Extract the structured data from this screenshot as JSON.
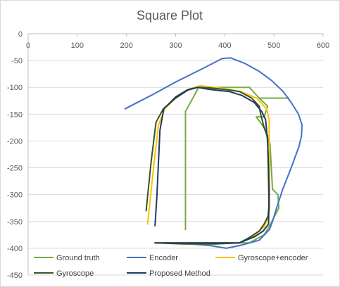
{
  "chart_data": {
    "type": "line",
    "title": "Square Plot",
    "xlabel": "",
    "ylabel": "",
    "xlim": [
      0,
      600
    ],
    "ylim": [
      -450,
      0
    ],
    "x_ticks": [
      0,
      100,
      200,
      300,
      400,
      500,
      600
    ],
    "y_ticks": [
      0,
      -50,
      -100,
      -150,
      -200,
      -250,
      -300,
      -350,
      -400,
      -450
    ],
    "x_axis_at_top": true,
    "grid": "horizontal",
    "legend_position": "bottom",
    "series": [
      {
        "name": "Ground truth",
        "color": "#70ad47",
        "points": [
          [
            320,
            -365
          ],
          [
            320,
            -180
          ],
          [
            320,
            -145
          ],
          [
            347,
            -100
          ],
          [
            450,
            -100
          ],
          [
            470,
            -120
          ],
          [
            530,
            -120
          ],
          [
            470,
            -120
          ],
          [
            487,
            -135
          ],
          [
            480,
            -155
          ],
          [
            464,
            -155
          ],
          [
            480,
            -175
          ],
          [
            487,
            -195
          ],
          [
            492,
            -205
          ],
          [
            497,
            -290
          ],
          [
            508,
            -300
          ],
          [
            510,
            -325
          ],
          [
            490,
            -360
          ],
          [
            480,
            -375
          ],
          [
            450,
            -390
          ],
          [
            270,
            -390
          ]
        ]
      },
      {
        "name": "Encoder",
        "color": "#4472c4",
        "points": [
          [
            197,
            -140
          ],
          [
            250,
            -115
          ],
          [
            300,
            -90
          ],
          [
            355,
            -65
          ],
          [
            395,
            -46
          ],
          [
            412,
            -45
          ],
          [
            440,
            -55
          ],
          [
            470,
            -70
          ],
          [
            495,
            -87
          ],
          [
            518,
            -107
          ],
          [
            535,
            -128
          ],
          [
            550,
            -150
          ],
          [
            557,
            -170
          ],
          [
            556,
            -190
          ],
          [
            551,
            -210
          ],
          [
            535,
            -250
          ],
          [
            518,
            -290
          ],
          [
            507,
            -320
          ],
          [
            497,
            -350
          ],
          [
            491,
            -365
          ],
          [
            470,
            -385
          ],
          [
            430,
            -395
          ],
          [
            403,
            -400
          ],
          [
            370,
            -395
          ],
          [
            330,
            -392
          ],
          [
            265,
            -390
          ]
        ]
      },
      {
        "name": "Gyroscope+encoder",
        "color": "#ffc000",
        "points": [
          [
            243,
            -355
          ],
          [
            255,
            -250
          ],
          [
            265,
            -170
          ],
          [
            278,
            -140
          ],
          [
            300,
            -120
          ],
          [
            325,
            -104
          ],
          [
            350,
            -97
          ],
          [
            380,
            -100
          ],
          [
            430,
            -107
          ],
          [
            465,
            -120
          ],
          [
            485,
            -140
          ],
          [
            490,
            -160
          ],
          [
            491,
            -230
          ],
          [
            491,
            -330
          ],
          [
            487,
            -345
          ],
          [
            480,
            -360
          ],
          [
            462,
            -375
          ],
          [
            430,
            -390
          ],
          [
            380,
            -392
          ],
          [
            310,
            -392
          ],
          [
            260,
            -390
          ]
        ]
      },
      {
        "name": "Gyroscope",
        "color": "#375623",
        "points": [
          [
            240,
            -330
          ],
          [
            250,
            -240
          ],
          [
            260,
            -165
          ],
          [
            275,
            -140
          ],
          [
            300,
            -120
          ],
          [
            325,
            -105
          ],
          [
            345,
            -100
          ],
          [
            370,
            -101
          ],
          [
            410,
            -105
          ],
          [
            430,
            -108
          ],
          [
            455,
            -120
          ],
          [
            470,
            -135
          ],
          [
            473,
            -150
          ],
          [
            480,
            -175
          ],
          [
            487,
            -190
          ],
          [
            488,
            -230
          ],
          [
            490,
            -320
          ],
          [
            488,
            -340
          ],
          [
            480,
            -355
          ],
          [
            470,
            -368
          ],
          [
            450,
            -380
          ],
          [
            430,
            -390
          ],
          [
            380,
            -392
          ],
          [
            320,
            -392
          ],
          [
            258,
            -390
          ]
        ]
      },
      {
        "name": "Proposed Method",
        "color": "#203864",
        "points": [
          [
            258,
            -358
          ],
          [
            262,
            -300
          ],
          [
            265,
            -240
          ],
          [
            268,
            -180
          ],
          [
            276,
            -140
          ],
          [
            300,
            -118
          ],
          [
            325,
            -104
          ],
          [
            345,
            -100
          ],
          [
            370,
            -104
          ],
          [
            410,
            -108
          ],
          [
            435,
            -115
          ],
          [
            460,
            -128
          ],
          [
            475,
            -145
          ],
          [
            483,
            -160
          ],
          [
            487,
            -200
          ],
          [
            489,
            -250
          ],
          [
            490,
            -300
          ],
          [
            489,
            -355
          ],
          [
            478,
            -368
          ],
          [
            462,
            -378
          ],
          [
            430,
            -390
          ],
          [
            380,
            -390
          ],
          [
            320,
            -390
          ],
          [
            258,
            -390
          ]
        ]
      }
    ]
  }
}
